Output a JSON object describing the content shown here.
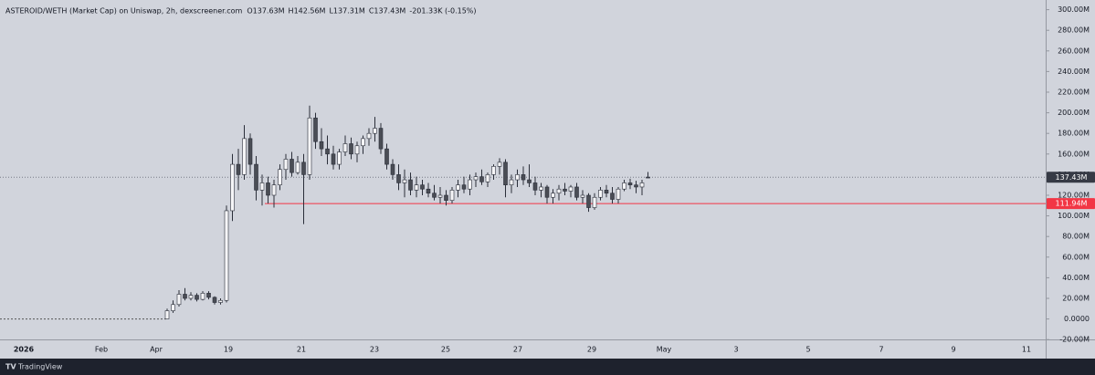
{
  "chart_data": {
    "type": "candlestick",
    "title": "ASTEROID/WETH (Market Cap) on Uniswap, 2h, dexscreener.com",
    "ohlc_header": [
      "O137.63M",
      "H142.56M",
      "L137.31M",
      "C137.43M",
      "-201.33K (-0.15%)"
    ],
    "x_labels": [
      "2026",
      "Feb",
      "Apr",
      "19",
      "21",
      "23",
      "25",
      "27",
      "29",
      "May",
      "3",
      "5",
      "7",
      "9",
      "11"
    ],
    "ylim": [
      -20,
      300
    ],
    "yticks": [
      {
        "value": 300,
        "label": "300.00M"
      },
      {
        "value": 280,
        "label": "280.00M"
      },
      {
        "value": 260,
        "label": "260.00M"
      },
      {
        "value": 240,
        "label": "240.00M"
      },
      {
        "value": 220,
        "label": "220.00M"
      },
      {
        "value": 200,
        "label": "200.00M"
      },
      {
        "value": 180,
        "label": "180.00M"
      },
      {
        "value": 160,
        "label": "160.00M"
      },
      {
        "value": 140,
        "label": "140.00M"
      },
      {
        "value": 120,
        "label": "120.00M"
      },
      {
        "value": 100,
        "label": "100.00M"
      },
      {
        "value": 80,
        "label": "80.00M"
      },
      {
        "value": 60,
        "label": "60.00M"
      },
      {
        "value": 40,
        "label": "40.00M"
      },
      {
        "value": 20,
        "label": "20.00M"
      },
      {
        "value": 0,
        "label": "0.0000"
      },
      {
        "value": -20,
        "label": "-20.00M"
      }
    ],
    "prelaunch_level": 0,
    "price_label": "137.43M",
    "level_line": {
      "value": 111.94,
      "label": "111.94M",
      "color": "#f23645"
    },
    "up_color": "#f5f5f7",
    "down_color": "#4a4d55",
    "candles": [
      [
        0,
        10,
        0,
        8
      ],
      [
        8,
        18,
        6,
        14
      ],
      [
        14,
        28,
        12,
        24
      ],
      [
        24,
        30,
        18,
        20
      ],
      [
        20,
        26,
        18,
        23
      ],
      [
        23,
        25,
        17,
        19
      ],
      [
        19,
        27,
        18,
        25
      ],
      [
        25,
        27,
        19,
        21
      ],
      [
        21,
        22,
        14,
        16
      ],
      [
        16,
        20,
        14,
        18
      ],
      [
        18,
        110,
        16,
        105
      ],
      [
        105,
        160,
        95,
        150
      ],
      [
        150,
        165,
        125,
        140
      ],
      [
        140,
        188,
        135,
        175
      ],
      [
        175,
        180,
        140,
        150
      ],
      [
        150,
        158,
        115,
        125
      ],
      [
        125,
        140,
        110,
        132
      ],
      [
        132,
        138,
        112,
        120
      ],
      [
        120,
        135,
        108,
        130
      ],
      [
        130,
        150,
        125,
        145
      ],
      [
        145,
        160,
        135,
        155
      ],
      [
        155,
        162,
        138,
        142
      ],
      [
        142,
        158,
        140,
        152
      ],
      [
        152,
        160,
        92,
        140
      ],
      [
        140,
        207,
        135,
        195
      ],
      [
        195,
        200,
        165,
        172
      ],
      [
        172,
        185,
        158,
        165
      ],
      [
        165,
        178,
        150,
        160
      ],
      [
        160,
        168,
        145,
        150
      ],
      [
        150,
        165,
        145,
        162
      ],
      [
        162,
        178,
        158,
        170
      ],
      [
        170,
        176,
        155,
        160
      ],
      [
        160,
        172,
        152,
        168
      ],
      [
        168,
        178,
        160,
        175
      ],
      [
        175,
        185,
        168,
        180
      ],
      [
        180,
        196,
        172,
        185
      ],
      [
        185,
        190,
        160,
        165
      ],
      [
        165,
        170,
        145,
        150
      ],
      [
        150,
        155,
        135,
        140
      ],
      [
        140,
        150,
        125,
        132
      ],
      [
        132,
        145,
        118,
        135
      ],
      [
        135,
        142,
        120,
        125
      ],
      [
        125,
        138,
        118,
        130
      ],
      [
        130,
        135,
        120,
        126
      ],
      [
        126,
        132,
        118,
        122
      ],
      [
        122,
        130,
        115,
        118
      ],
      [
        118,
        128,
        112,
        120
      ],
      [
        120,
        125,
        110,
        115
      ],
      [
        115,
        128,
        112,
        125
      ],
      [
        125,
        135,
        118,
        130
      ],
      [
        130,
        138,
        122,
        126
      ],
      [
        126,
        140,
        120,
        135
      ],
      [
        135,
        142,
        128,
        138
      ],
      [
        138,
        145,
        130,
        133
      ],
      [
        133,
        142,
        128,
        140
      ],
      [
        140,
        150,
        135,
        148
      ],
      [
        148,
        156,
        140,
        152
      ],
      [
        152,
        155,
        118,
        130
      ],
      [
        130,
        140,
        122,
        135
      ],
      [
        135,
        145,
        128,
        140
      ],
      [
        140,
        148,
        130,
        135
      ],
      [
        135,
        150,
        128,
        132
      ],
      [
        132,
        138,
        120,
        125
      ],
      [
        125,
        132,
        118,
        128
      ],
      [
        128,
        130,
        112,
        118
      ],
      [
        118,
        126,
        112,
        122
      ],
      [
        122,
        130,
        115,
        126
      ],
      [
        126,
        132,
        120,
        124
      ],
      [
        124,
        130,
        118,
        128
      ],
      [
        128,
        132,
        115,
        118
      ],
      [
        118,
        125,
        112,
        120
      ],
      [
        120,
        122,
        104,
        108
      ],
      [
        108,
        122,
        106,
        118
      ],
      [
        118,
        128,
        115,
        125
      ],
      [
        125,
        130,
        118,
        122
      ],
      [
        122,
        128,
        112,
        116
      ],
      [
        116,
        128,
        112,
        126
      ],
      [
        126,
        135,
        124,
        132
      ],
      [
        132,
        136,
        126,
        130
      ],
      [
        130,
        134,
        122,
        128
      ],
      [
        128,
        135,
        120,
        132
      ],
      [
        137.63,
        142.56,
        137.31,
        137.43
      ]
    ]
  }
}
